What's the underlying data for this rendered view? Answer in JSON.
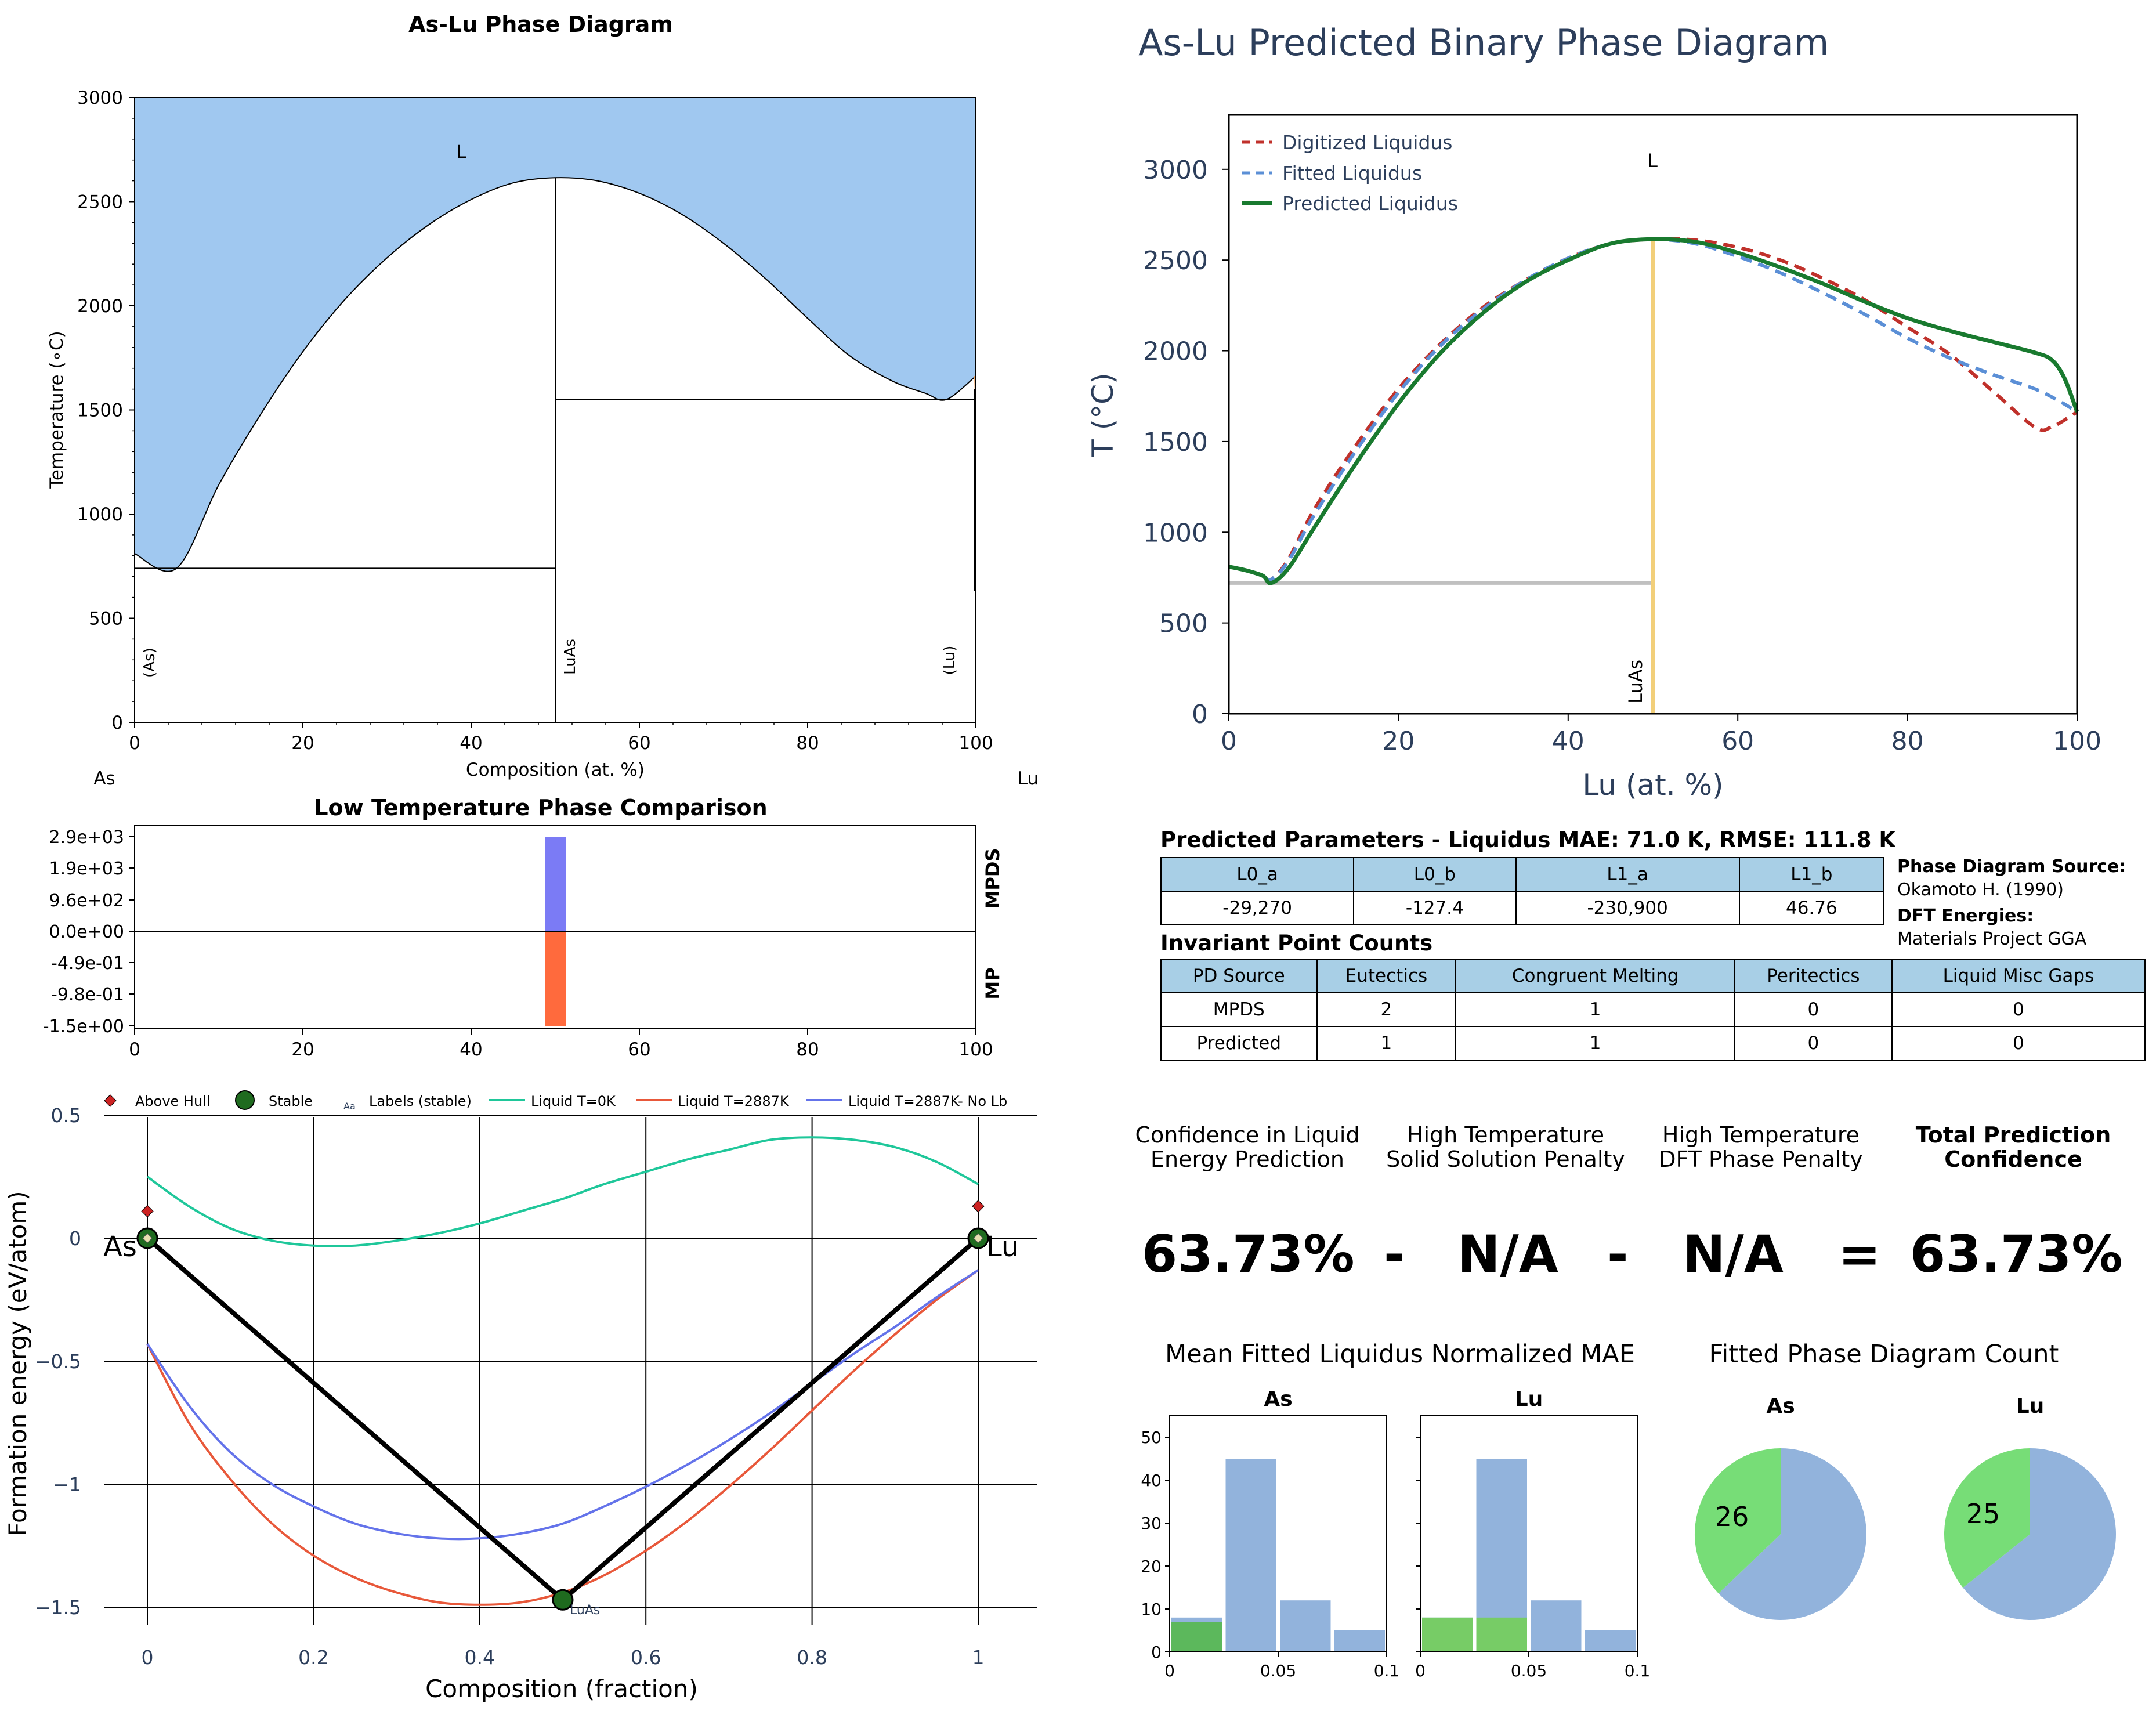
{
  "panel_pd": {
    "title": "As-Lu Phase Diagram",
    "xlabel": "Composition (at. %)",
    "ylabel": "Temperature (∘C)",
    "left_element": "As",
    "right_element": "Lu",
    "xticks": [
      "0",
      "20",
      "40",
      "60",
      "80",
      "100"
    ],
    "yticks": [
      "0",
      "500",
      "1000",
      "1500",
      "2000",
      "2500",
      "3000"
    ],
    "region_labels": {
      "liquid": "L",
      "as": "(As)",
      "luas": "LuAs",
      "lu": "(Lu)"
    },
    "colors": {
      "liquid": "#a0c8f0",
      "lu_phase": "#f4a460"
    }
  },
  "panel_pred": {
    "title": "As-Lu Predicted Binary Phase Diagram",
    "xlabel": "Lu (at. %)",
    "ylabel": "T (°C)",
    "xticks": [
      "0",
      "20",
      "40",
      "60",
      "80",
      "100"
    ],
    "yticks": [
      "0",
      "500",
      "1000",
      "1500",
      "2000",
      "2500",
      "3000"
    ],
    "liquid_label": "L",
    "compound_label": "LuAs",
    "legend": [
      "Digitized Liquidus",
      "Fitted Liquidus",
      "Predicted Liquidus"
    ],
    "colors": {
      "digitized": "#c0312b",
      "fitted": "#5b8fd6",
      "predicted": "#197a2f",
      "compound": "#f2cf7a",
      "eutectic": "#c0c0c0",
      "text": "#2c3e5b"
    }
  },
  "panel_lowt": {
    "title": "Low Temperature Phase Comparison",
    "yticks": [
      "2.9e+03",
      "1.9e+03",
      "9.6e+02",
      "0.0e+00",
      "-4.9e-01",
      "-9.8e-01",
      "-1.5e+00"
    ],
    "xticks": [
      "0",
      "20",
      "40",
      "60",
      "80",
      "100"
    ],
    "side_labels": [
      "MPDS",
      "MP"
    ],
    "colors": {
      "mpds": "#7b7bf5",
      "mp": "#ff6a3d"
    }
  },
  "panel_hull": {
    "xlabel": "Composition (fraction)",
    "ylabel": "Formation energy (eV/atom)",
    "xticks": [
      "0",
      "0.2",
      "0.4",
      "0.6",
      "0.8",
      "1"
    ],
    "yticks": [
      "0.5",
      "0",
      "−0.5",
      "−1",
      "−1.5"
    ],
    "legend": {
      "above_hull": "Above Hull",
      "stable": "Stable",
      "labels_marker": "Aa",
      "labels": "Labels (stable)",
      "liq0": "Liquid T=0K",
      "liq1": "Liquid T=2887K",
      "liq2": "Liquid T=2887K- No Lb"
    },
    "point_labels": {
      "as": "As",
      "lu": "Lu",
      "luas": "LuAs"
    },
    "colors": {
      "liq0": "#1fc79a",
      "liq1": "#e8583a",
      "liq2": "#6473ea",
      "stable": "#1f6b1f",
      "above": "#cc2222"
    }
  },
  "params": {
    "title": "Predicted Parameters - Liquidus MAE: 71.0 K, RMSE: 111.8 K",
    "headers": [
      "L0_a",
      "L0_b",
      "L1_a",
      "L1_b"
    ],
    "values": [
      "-29,270",
      "-127.4",
      "-230,900",
      "46.76"
    ],
    "source_title": "Phase Diagram Source:",
    "source": "Okamoto H. (1990)",
    "dft_title": "DFT Energies:",
    "dft": "Materials Project GGA"
  },
  "invariants": {
    "title": "Invariant Point Counts",
    "headers": [
      "PD Source",
      "Eutectics",
      "Congruent Melting",
      "Peritectics",
      "Liquid Misc Gaps"
    ],
    "rows": [
      [
        "MPDS",
        "2",
        "1",
        "0",
        "0"
      ],
      [
        "Predicted",
        "1",
        "1",
        "0",
        "0"
      ]
    ]
  },
  "confidence": {
    "cap1": "Confidence in Liquid\nEnergy Prediction",
    "cap2": "High Temperature\nSolid Solution Penalty",
    "cap3": "High Temperature\nDFT Phase Penalty",
    "cap4": "Total Prediction\nConfidence",
    "v1": "63.73%",
    "op1": "-",
    "v2": "N/A",
    "op2": "-",
    "v3": "N/A",
    "op3": "=",
    "v4": "63.73%"
  },
  "mae_hist": {
    "title": "Mean Fitted Liquidus Normalized MAE",
    "subtitles": [
      "As",
      "Lu"
    ],
    "yticks": [
      "0",
      "10",
      "20",
      "30",
      "40",
      "50"
    ],
    "xticks": [
      "0",
      "0.05",
      "0.1"
    ]
  },
  "pie": {
    "title": "Fitted Phase Diagram Count",
    "subtitles": [
      "As",
      "Lu"
    ],
    "labels": [
      "26",
      "25"
    ]
  },
  "chart_data": [
    {
      "type": "area",
      "title": "As-Lu Phase Diagram",
      "xlabel": "Composition (at. %)",
      "ylabel": "Temperature (∘C)",
      "xlim": [
        0,
        100
      ],
      "ylim": [
        0,
        3000
      ],
      "liquidus": {
        "x": [
          0,
          5,
          10,
          15,
          20,
          25,
          30,
          35,
          40,
          45,
          50,
          55,
          60,
          65,
          70,
          75,
          80,
          85,
          90,
          94,
          96.5,
          100
        ],
        "y": [
          810,
          740,
          1140,
          1480,
          1780,
          2030,
          2230,
          2390,
          2510,
          2590,
          2615,
          2600,
          2540,
          2440,
          2300,
          2130,
          1940,
          1760,
          1640,
          1580,
          1550,
          1663
        ]
      },
      "eutectic_lines": [
        {
          "x": [
            0,
            50
          ],
          "y": 740
        },
        {
          "x": [
            50,
            100
          ],
          "y": 1550
        }
      ],
      "compound_x": 50
    },
    {
      "type": "line",
      "title": "As-Lu Predicted Binary Phase Diagram",
      "xlabel": "Lu (at. %)",
      "ylabel": "T (°C)",
      "xlim": [
        0,
        100
      ],
      "ylim": [
        0,
        3300
      ],
      "series": [
        {
          "name": "Digitized Liquidus",
          "x": [
            0,
            2,
            4,
            5,
            7,
            10,
            15,
            20,
            25,
            30,
            35,
            40,
            45,
            50,
            55,
            60,
            65,
            70,
            75,
            80,
            85,
            90,
            95,
            97,
            100
          ],
          "y": [
            810,
            790,
            760,
            740,
            850,
            1120,
            1480,
            1790,
            2040,
            2240,
            2390,
            2510,
            2590,
            2615,
            2610,
            2570,
            2500,
            2400,
            2280,
            2130,
            1980,
            1780,
            1580,
            1580,
            1663
          ]
        },
        {
          "name": "Fitted Liquidus",
          "x": [
            0,
            2,
            4,
            5,
            7,
            10,
            15,
            20,
            25,
            30,
            35,
            40,
            45,
            50,
            55,
            60,
            65,
            70,
            75,
            80,
            85,
            90,
            95,
            98,
            100
          ],
          "y": [
            810,
            790,
            760,
            740,
            840,
            1090,
            1450,
            1770,
            2030,
            2230,
            2390,
            2510,
            2590,
            2615,
            2590,
            2520,
            2430,
            2320,
            2200,
            2070,
            1960,
            1870,
            1790,
            1720,
            1663
          ]
        },
        {
          "name": "Predicted Liquidus",
          "x": [
            0,
            2,
            4,
            5,
            7,
            10,
            15,
            20,
            25,
            30,
            35,
            40,
            45,
            50,
            55,
            60,
            65,
            70,
            75,
            80,
            85,
            90,
            95,
            97,
            98.5,
            100
          ],
          "y": [
            810,
            790,
            760,
            720,
            800,
            1020,
            1380,
            1710,
            1990,
            2210,
            2380,
            2500,
            2590,
            2615,
            2600,
            2540,
            2460,
            2370,
            2270,
            2180,
            2110,
            2050,
            1990,
            1950,
            1850,
            1663
          ]
        }
      ],
      "eutectic_line": {
        "x": [
          0,
          50
        ],
        "y": 720
      },
      "compound_x": 50
    },
    {
      "type": "bar",
      "title": "Low Temperature Phase Comparison",
      "series": [
        {
          "name": "MPDS",
          "x": 50,
          "value": 2900
        },
        {
          "name": "MP",
          "x": 50,
          "value": -1.5
        }
      ],
      "xlim": [
        0,
        100
      ]
    },
    {
      "type": "line",
      "xlabel": "Composition (fraction)",
      "ylabel": "Formation energy (eV/atom)",
      "xlim": [
        -0.05,
        1.05
      ],
      "ylim": [
        -1.55,
        0.55
      ],
      "series": [
        {
          "name": "Liquid T=0K",
          "x": [
            0,
            0.05,
            0.1,
            0.15,
            0.2,
            0.25,
            0.3,
            0.35,
            0.4,
            0.45,
            0.5,
            0.55,
            0.6,
            0.65,
            0.7,
            0.75,
            0.8,
            0.85,
            0.9,
            0.95,
            1
          ],
          "y": [
            0.25,
            0.13,
            0.04,
            -0.01,
            -0.03,
            -0.03,
            -0.01,
            0.02,
            0.06,
            0.11,
            0.16,
            0.22,
            0.27,
            0.32,
            0.36,
            0.4,
            0.41,
            0.4,
            0.37,
            0.31,
            0.22
          ]
        },
        {
          "name": "Liquid T=2887K",
          "x": [
            0,
            0.05,
            0.1,
            0.15,
            0.2,
            0.25,
            0.3,
            0.35,
            0.4,
            0.45,
            0.5,
            0.55,
            0.6,
            0.65,
            0.7,
            0.75,
            0.8,
            0.85,
            0.9,
            0.95,
            1
          ],
          "y": [
            -0.43,
            -0.75,
            -0.98,
            -1.16,
            -1.29,
            -1.38,
            -1.44,
            -1.48,
            -1.49,
            -1.48,
            -1.44,
            -1.37,
            -1.27,
            -1.15,
            -1.01,
            -0.86,
            -0.7,
            -0.54,
            -0.39,
            -0.25,
            -0.13
          ]
        },
        {
          "name": "Liquid T=2887K- No Lb",
          "x": [
            0,
            0.05,
            0.1,
            0.15,
            0.2,
            0.25,
            0.3,
            0.35,
            0.4,
            0.45,
            0.5,
            0.55,
            0.6,
            0.65,
            0.7,
            0.75,
            0.8,
            0.85,
            0.9,
            0.95,
            1
          ],
          "y": [
            -0.43,
            -0.68,
            -0.87,
            -1.0,
            -1.09,
            -1.16,
            -1.2,
            -1.22,
            -1.22,
            -1.2,
            -1.16,
            -1.09,
            -1.01,
            -0.92,
            -0.82,
            -0.71,
            -0.59,
            -0.47,
            -0.36,
            -0.24,
            -0.13
          ]
        },
        {
          "name": "Hull",
          "x": [
            0,
            0.5,
            1
          ],
          "y": [
            0,
            -1.47,
            0
          ]
        }
      ],
      "stable_points": [
        {
          "x": 0,
          "y": 0,
          "label": "As"
        },
        {
          "x": 0.5,
          "y": -1.47,
          "label": "LuAs"
        },
        {
          "x": 1,
          "y": 0,
          "label": "Lu"
        }
      ],
      "above_hull_points": [
        {
          "x": 0,
          "y": 0.11
        },
        {
          "x": 1,
          "y": 0.13
        }
      ]
    },
    {
      "type": "bar",
      "title": "As",
      "bins": [
        [
          0,
          0.025
        ],
        [
          0.025,
          0.05
        ],
        [
          0.05,
          0.075
        ],
        [
          0.075,
          0.1
        ]
      ],
      "values": [
        8,
        45,
        12,
        5
      ],
      "highlight": 7,
      "ylim": [
        0,
        55
      ],
      "xlim": [
        0,
        0.1
      ]
    },
    {
      "type": "bar",
      "title": "Lu",
      "bins": [
        [
          0,
          0.025
        ],
        [
          0.025,
          0.05
        ],
        [
          0.05,
          0.075
        ],
        [
          0.075,
          0.1
        ]
      ],
      "values": [
        8,
        45,
        12,
        5
      ],
      "highlight_bins": [
        [
          0,
          8
        ],
        [
          1,
          8
        ]
      ],
      "ylim": [
        0,
        55
      ],
      "xlim": [
        0,
        0.1
      ]
    },
    {
      "type": "pie",
      "title": "As",
      "slices": [
        {
          "label": "26",
          "value": 26,
          "color": "#77dd77"
        },
        {
          "value": 44,
          "color": "#92b3dc"
        }
      ]
    },
    {
      "type": "pie",
      "title": "Lu",
      "slices": [
        {
          "label": "25",
          "value": 25,
          "color": "#77dd77"
        },
        {
          "value": 45,
          "color": "#92b3dc"
        }
      ]
    }
  ]
}
